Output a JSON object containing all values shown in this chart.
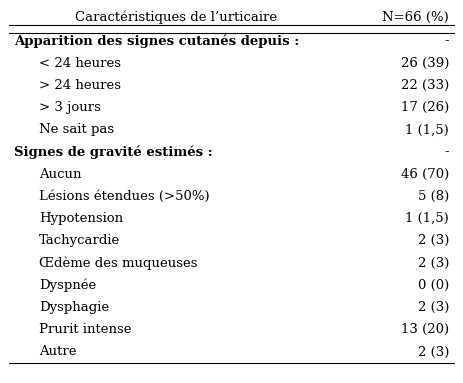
{
  "col1_header": "Caractéristiques de l’urticaire",
  "col2_header": "N=66 (%)",
  "rows": [
    {
      "label": "Apparition des signes cutanés depuis :",
      "value": "-",
      "bold": true,
      "indent": 0
    },
    {
      "label": "< 24 heures",
      "value": "26 (39)",
      "bold": false,
      "indent": 1
    },
    {
      "label": "> 24 heures",
      "value": "22 (33)",
      "bold": false,
      "indent": 1
    },
    {
      "label": "> 3 jours",
      "value": "17 (26)",
      "bold": false,
      "indent": 1
    },
    {
      "label": "Ne sait pas",
      "value": "1 (1,5)",
      "bold": false,
      "indent": 1
    },
    {
      "label": "Signes de gravité estimés :",
      "value": "-",
      "bold": true,
      "indent": 0
    },
    {
      "label": "Aucun",
      "value": "46 (70)",
      "bold": false,
      "indent": 1
    },
    {
      "label": "Lésions étendues (>50%)",
      "value": "5 (8)",
      "bold": false,
      "indent": 1
    },
    {
      "label": "Hypotension",
      "value": "1 (1,5)",
      "bold": false,
      "indent": 1
    },
    {
      "label": "Tachycardie",
      "value": "2 (3)",
      "bold": false,
      "indent": 1
    },
    {
      "label": "Œdème des muqueuses",
      "value": "2 (3)",
      "bold": false,
      "indent": 1
    },
    {
      "label": "Dyspnée",
      "value": "0 (0)",
      "bold": false,
      "indent": 1
    },
    {
      "label": "Dysphagie",
      "value": "2 (3)",
      "bold": false,
      "indent": 1
    },
    {
      "label": "Prurit intense",
      "value": "13 (20)",
      "bold": false,
      "indent": 1
    },
    {
      "label": "Autre",
      "value": "2 (3)",
      "bold": false,
      "indent": 1
    }
  ],
  "bg_color": "#ffffff",
  "text_color": "#000000",
  "line_color": "#000000",
  "font_size": 9.5,
  "header_font_size": 9.5
}
